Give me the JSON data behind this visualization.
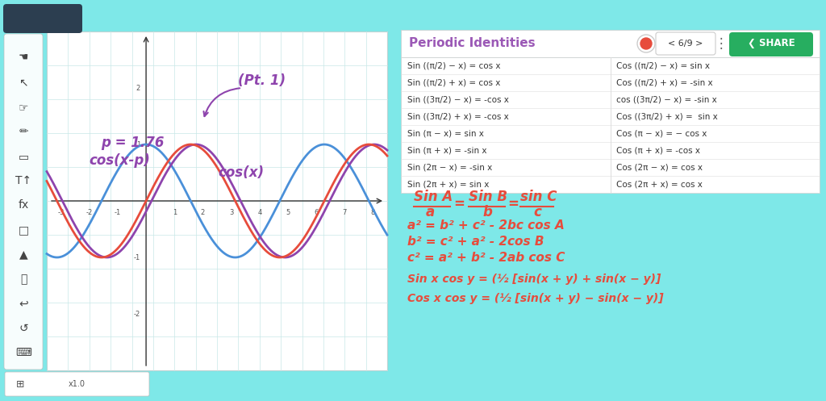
{
  "bg_color": "#7ee8e8",
  "title": "Periodic Identities",
  "title_color": "#9b59b6",
  "table_rows_left": [
    "Sin ((π/2) − x) = cos x",
    "Sin ((π/2) + x) = cos x",
    "Sin ((3π/2) − x) = -cos x",
    "Sin ((3π/2) + x) = -cos x",
    "Sin (π − x) = sin x",
    "Sin (π + x) = -sin x",
    "Sin (2π − x) = -sin x",
    "Sin (2π + x) = sin x"
  ],
  "table_rows_right": [
    "Cos ((π/2) − x) = sin x",
    "Cos ((π/2) + x) = -sin x",
    "cos ((3π/2) − x) = -sin x",
    "Cos ((3π/2) + x) =  sin x",
    "Cos (π − x) = − cos x",
    "Cos (π + x) = -cos x",
    "Cos (2π − x) = cos x",
    "Cos (2π + x) = cos x"
  ],
  "cos_color": "#4a90d9",
  "shifted_cos_color": "#8e44ad",
  "sin_color": "#e74c3c",
  "grid_color": "#c8e8e8",
  "axis_color": "#333333",
  "handwriting_purple": "#8e44ad",
  "handwriting_red": "#e74c3c",
  "share_btn_color": "#27ae60",
  "record_btn_color": "#e74c3c",
  "home_btn_color": "#2c3e50",
  "p_val": 1.76,
  "x_min": -3.5,
  "x_max": 8.5,
  "y_min": -3.0,
  "y_max": 3.0
}
